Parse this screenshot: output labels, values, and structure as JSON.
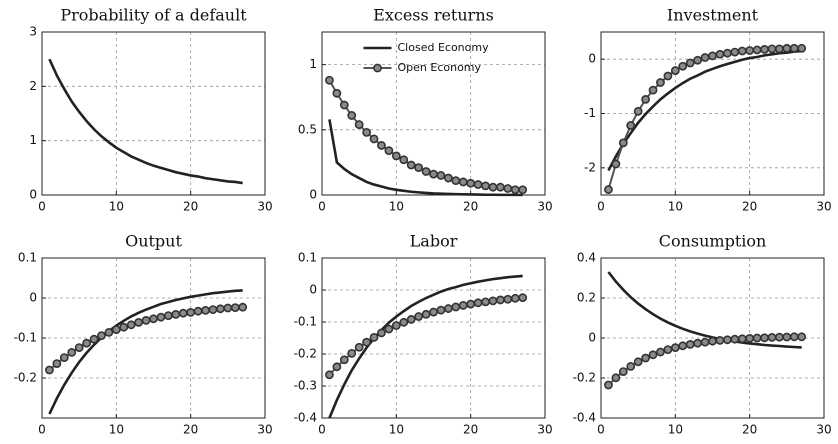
{
  "chart_data": [
    {
      "type": "line",
      "title": "Probability of a default",
      "x": [
        1,
        2,
        3,
        4,
        5,
        6,
        7,
        8,
        9,
        10,
        11,
        12,
        13,
        14,
        15,
        16,
        17,
        18,
        19,
        20,
        21,
        22,
        23,
        24,
        25,
        26,
        27
      ],
      "xlim": [
        0,
        30
      ],
      "xticks": [
        0,
        10,
        20,
        30
      ],
      "ylim": [
        0,
        3
      ],
      "yticks": [
        0,
        1,
        2,
        3
      ],
      "grid": true,
      "series": [
        {
          "color": "#222222",
          "values": [
            2.5,
            2.2,
            1.95,
            1.72,
            1.53,
            1.36,
            1.21,
            1.08,
            0.97,
            0.87,
            0.79,
            0.71,
            0.65,
            0.59,
            0.54,
            0.5,
            0.46,
            0.42,
            0.39,
            0.36,
            0.34,
            0.31,
            0.29,
            0.27,
            0.25,
            0.24,
            0.22
          ]
        }
      ]
    },
    {
      "type": "line",
      "title": "Excess returns",
      "x": [
        1,
        2,
        3,
        4,
        5,
        6,
        7,
        8,
        9,
        10,
        11,
        12,
        13,
        14,
        15,
        16,
        17,
        18,
        19,
        20,
        21,
        22,
        23,
        24,
        25,
        26,
        27
      ],
      "xlim": [
        0,
        30
      ],
      "xticks": [
        0,
        10,
        20,
        30
      ],
      "ylim": [
        0,
        1.25
      ],
      "yticks": [
        0,
        0.5,
        1
      ],
      "grid": true,
      "legend": "upper center",
      "series": [
        {
          "name": "Closed Economy",
          "color": "#222222",
          "values": [
            0.58,
            0.25,
            0.2,
            0.16,
            0.13,
            0.1,
            0.08,
            0.065,
            0.05,
            0.04,
            0.032,
            0.025,
            0.02,
            0.016,
            0.012,
            0.01,
            0.008,
            0.006,
            0.005,
            0.004,
            0.003,
            0.002,
            0.002,
            0.001,
            0.001,
            0.001,
            0
          ]
        },
        {
          "name": "Open Economy",
          "color": "#555555",
          "marker": "circle",
          "values": [
            0.88,
            0.78,
            0.69,
            0.61,
            0.54,
            0.48,
            0.43,
            0.38,
            0.34,
            0.3,
            0.27,
            0.23,
            0.21,
            0.18,
            0.16,
            0.15,
            0.13,
            0.11,
            0.1,
            0.09,
            0.08,
            0.07,
            0.06,
            0.06,
            0.05,
            0.04,
            0.04
          ]
        }
      ]
    },
    {
      "type": "line",
      "title": "Investment",
      "x": [
        1,
        2,
        3,
        4,
        5,
        6,
        7,
        8,
        9,
        10,
        11,
        12,
        13,
        14,
        15,
        16,
        17,
        18,
        19,
        20,
        21,
        22,
        23,
        24,
        25,
        26,
        27
      ],
      "xlim": [
        0,
        30
      ],
      "xticks": [
        0,
        10,
        20,
        30
      ],
      "ylim": [
        -2.5,
        0.5
      ],
      "yticks": [
        -2,
        -1,
        0
      ],
      "grid": true,
      "series": [
        {
          "color": "#222222",
          "values": [
            -2.05,
            -1.79,
            -1.56,
            -1.36,
            -1.17,
            -1.01,
            -0.87,
            -0.74,
            -0.63,
            -0.53,
            -0.44,
            -0.36,
            -0.3,
            -0.23,
            -0.18,
            -0.13,
            -0.09,
            -0.05,
            -0.01,
            0.02,
            0.04,
            0.07,
            0.09,
            0.11,
            0.12,
            0.14,
            0.15
          ]
        },
        {
          "color": "#555555",
          "marker": "circle",
          "values": [
            -2.4,
            -1.93,
            -1.54,
            -1.22,
            -0.96,
            -0.74,
            -0.57,
            -0.43,
            -0.31,
            -0.21,
            -0.13,
            -0.07,
            -0.02,
            0.03,
            0.06,
            0.09,
            0.11,
            0.13,
            0.15,
            0.16,
            0.17,
            0.18,
            0.19,
            0.19,
            0.2,
            0.2,
            0.2
          ]
        }
      ]
    },
    {
      "type": "line",
      "title": "Output",
      "x": [
        1,
        2,
        3,
        4,
        5,
        6,
        7,
        8,
        9,
        10,
        11,
        12,
        13,
        14,
        15,
        16,
        17,
        18,
        19,
        20,
        21,
        22,
        23,
        24,
        25,
        26,
        27
      ],
      "xlim": [
        0,
        30
      ],
      "xticks": [
        0,
        10,
        20,
        30
      ],
      "ylim": [
        -0.3,
        0.1
      ],
      "yticks": [
        -0.2,
        -0.1,
        0,
        0.1
      ],
      "grid": true,
      "series": [
        {
          "color": "#222222",
          "values": [
            -0.29,
            -0.251,
            -0.217,
            -0.187,
            -0.16,
            -0.137,
            -0.117,
            -0.099,
            -0.083,
            -0.069,
            -0.057,
            -0.046,
            -0.037,
            -0.029,
            -0.022,
            -0.015,
            -0.01,
            -0.005,
            -0.001,
            0.003,
            0.006,
            0.009,
            0.012,
            0.014,
            0.016,
            0.018,
            0.019
          ]
        },
        {
          "color": "#555555",
          "marker": "circle",
          "values": [
            -0.18,
            -0.164,
            -0.149,
            -0.136,
            -0.124,
            -0.113,
            -0.103,
            -0.094,
            -0.086,
            -0.079,
            -0.073,
            -0.067,
            -0.061,
            -0.056,
            -0.052,
            -0.048,
            -0.044,
            -0.041,
            -0.038,
            -0.036,
            -0.033,
            -0.031,
            -0.029,
            -0.027,
            -0.025,
            -0.024,
            -0.023
          ]
        }
      ]
    },
    {
      "type": "line",
      "title": "Labor",
      "x": [
        1,
        2,
        3,
        4,
        5,
        6,
        7,
        8,
        9,
        10,
        11,
        12,
        13,
        14,
        15,
        16,
        17,
        18,
        19,
        20,
        21,
        22,
        23,
        24,
        25,
        26,
        27
      ],
      "xlim": [
        0,
        30
      ],
      "xticks": [
        0,
        10,
        20,
        30
      ],
      "ylim": [
        -0.4,
        0.1
      ],
      "yticks": [
        -0.4,
        -0.3,
        -0.2,
        -0.1,
        0,
        0.1
      ],
      "grid": true,
      "series": [
        {
          "color": "#222222",
          "values": [
            -0.4,
            -0.344,
            -0.295,
            -0.251,
            -0.214,
            -0.18,
            -0.151,
            -0.125,
            -0.102,
            -0.083,
            -0.066,
            -0.05,
            -0.037,
            -0.025,
            -0.015,
            -0.005,
            0.003,
            0.009,
            0.016,
            0.021,
            0.026,
            0.03,
            0.034,
            0.037,
            0.04,
            0.042,
            0.044
          ]
        },
        {
          "color": "#555555",
          "marker": "circle",
          "values": [
            -0.265,
            -0.24,
            -0.218,
            -0.198,
            -0.179,
            -0.163,
            -0.148,
            -0.134,
            -0.122,
            -0.111,
            -0.101,
            -0.092,
            -0.083,
            -0.076,
            -0.069,
            -0.063,
            -0.058,
            -0.053,
            -0.048,
            -0.044,
            -0.04,
            -0.037,
            -0.034,
            -0.031,
            -0.029,
            -0.026,
            -0.024
          ]
        }
      ]
    },
    {
      "type": "line",
      "title": "Consumption",
      "x": [
        1,
        2,
        3,
        4,
        5,
        6,
        7,
        8,
        9,
        10,
        11,
        12,
        13,
        14,
        15,
        16,
        17,
        18,
        19,
        20,
        21,
        22,
        23,
        24,
        25,
        26,
        27
      ],
      "xlim": [
        0,
        30
      ],
      "xticks": [
        0,
        10,
        20,
        30
      ],
      "ylim": [
        -0.4,
        0.4
      ],
      "yticks": [
        -0.4,
        -0.2,
        0,
        0.2,
        0.4
      ],
      "grid": true,
      "series": [
        {
          "color": "#222222",
          "values": [
            0.33,
            0.282,
            0.241,
            0.204,
            0.172,
            0.144,
            0.119,
            0.097,
            0.078,
            0.061,
            0.046,
            0.033,
            0.022,
            0.012,
            0.003,
            -0.005,
            -0.011,
            -0.017,
            -0.023,
            -0.027,
            -0.031,
            -0.035,
            -0.038,
            -0.04,
            -0.043,
            -0.045,
            -0.047
          ]
        },
        {
          "color": "#555555",
          "marker": "circle",
          "values": [
            -0.235,
            -0.199,
            -0.168,
            -0.142,
            -0.119,
            -0.1,
            -0.084,
            -0.07,
            -0.058,
            -0.048,
            -0.039,
            -0.032,
            -0.026,
            -0.021,
            -0.016,
            -0.012,
            -0.009,
            -0.006,
            -0.004,
            -0.002,
            0,
            0.001,
            0.003,
            0.004,
            0.005,
            0.006,
            0.006
          ]
        }
      ]
    }
  ]
}
